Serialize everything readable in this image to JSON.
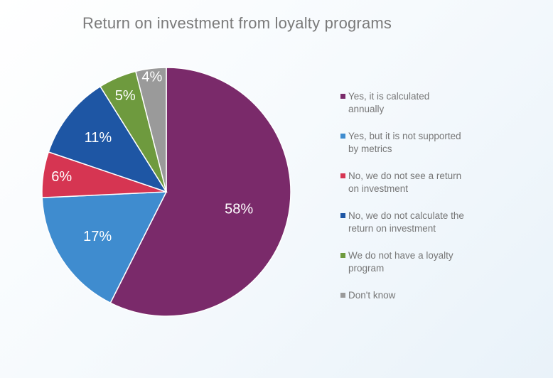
{
  "chart_data": {
    "type": "pie",
    "title": "Return on investment from loyalty programs",
    "categories": [
      "Yes, it is calculated annually",
      "Yes, but it is not supported by metrics",
      "No, we do not see a return on investment",
      "No, we do not calculate the return on investment",
      "We do  not have  a loyalty program",
      "Don't know"
    ],
    "values": [
      58,
      17,
      6,
      11,
      5,
      4
    ],
    "value_labels": [
      "58%",
      "17%",
      "6%",
      "11%",
      "5%",
      "4%"
    ],
    "colors": [
      "#7a2a6a",
      "#3f8ccf",
      "#d63552",
      "#1e56a4",
      "#6e9a3e",
      "#9a9a9a"
    ],
    "legend_position": "right",
    "start_angle": "12 o'clock",
    "direction": "clockwise"
  },
  "legend": [
    {
      "lines": [
        "Yes, it is calculated",
        "annually"
      ]
    },
    {
      "lines": [
        "Yes, but it is not supported",
        "by metrics"
      ]
    },
    {
      "lines": [
        "No, we do not see a return",
        "on investment"
      ]
    },
    {
      "lines": [
        "No, we do not calculate the",
        "return on investment"
      ]
    },
    {
      "lines": [
        "We do  not have  a loyalty",
        "program"
      ]
    },
    {
      "lines": [
        "Don't know"
      ]
    }
  ]
}
